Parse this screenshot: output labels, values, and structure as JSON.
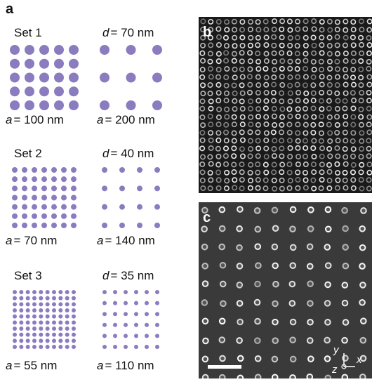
{
  "panel_labels": [
    "a",
    "b",
    "c"
  ],
  "sets": [
    {
      "name": "Set 1",
      "diameter": {
        "symbol": "d",
        "text": "= 70 nm"
      },
      "dense": {
        "symbol": "a",
        "text": "= 100 nm"
      },
      "sparse": {
        "symbol": "a",
        "text": "= 200 nm"
      }
    },
    {
      "name": "Set 2",
      "diameter": {
        "symbol": "d",
        "text": "= 40 nm"
      },
      "dense": {
        "symbol": "a",
        "text": "= 70 nm"
      },
      "sparse": {
        "symbol": "a",
        "text": "= 140 nm"
      }
    },
    {
      "name": "Set 3",
      "diameter": {
        "symbol": "d",
        "text": "= 35 nm"
      },
      "dense": {
        "symbol": "a",
        "text": "= 55 nm"
      },
      "sparse": {
        "symbol": "a",
        "text": "= 110 nm"
      }
    }
  ],
  "axes": {
    "x": "x",
    "y": "y",
    "z": "z"
  }
}
